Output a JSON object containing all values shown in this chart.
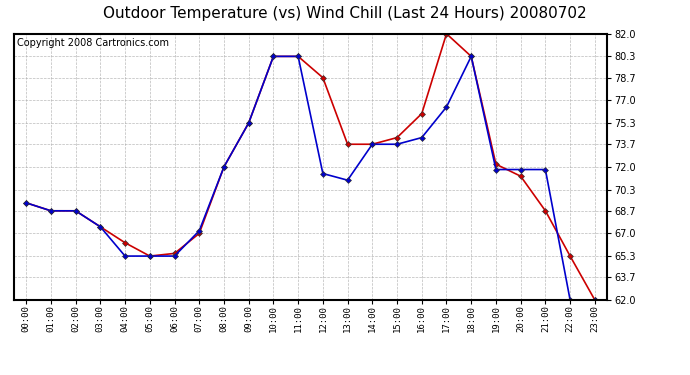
{
  "title": "Outdoor Temperature (vs) Wind Chill (Last 24 Hours) 20080702",
  "copyright": "Copyright 2008 Cartronics.com",
  "hours": [
    "00:00",
    "01:00",
    "02:00",
    "03:00",
    "04:00",
    "05:00",
    "06:00",
    "07:00",
    "08:00",
    "09:00",
    "10:00",
    "11:00",
    "12:00",
    "13:00",
    "14:00",
    "15:00",
    "16:00",
    "17:00",
    "18:00",
    "19:00",
    "20:00",
    "21:00",
    "22:00",
    "23:00"
  ],
  "temp": [
    69.3,
    68.7,
    68.7,
    67.5,
    66.3,
    65.3,
    65.5,
    67.0,
    72.0,
    75.3,
    80.3,
    80.3,
    78.7,
    73.7,
    73.7,
    74.2,
    76.0,
    82.0,
    80.3,
    72.2,
    71.3,
    68.7,
    65.3,
    62.0
  ],
  "windchill": [
    69.3,
    68.7,
    68.7,
    67.5,
    65.3,
    65.3,
    65.3,
    67.2,
    72.0,
    75.3,
    80.3,
    80.3,
    71.5,
    71.0,
    73.7,
    73.7,
    74.2,
    76.5,
    80.3,
    71.8,
    71.8,
    71.8,
    62.0,
    62.0
  ],
  "temp_color": "#cc0000",
  "windchill_color": "#0000cc",
  "ylim": [
    62.0,
    82.0
  ],
  "yticks": [
    62.0,
    63.7,
    65.3,
    67.0,
    68.7,
    70.3,
    72.0,
    73.7,
    75.3,
    77.0,
    78.7,
    80.3,
    82.0
  ],
  "background_color": "#ffffff",
  "grid_color": "#aaaaaa",
  "title_fontsize": 11,
  "copyright_fontsize": 7,
  "figsize": [
    6.9,
    3.75
  ],
  "dpi": 100
}
